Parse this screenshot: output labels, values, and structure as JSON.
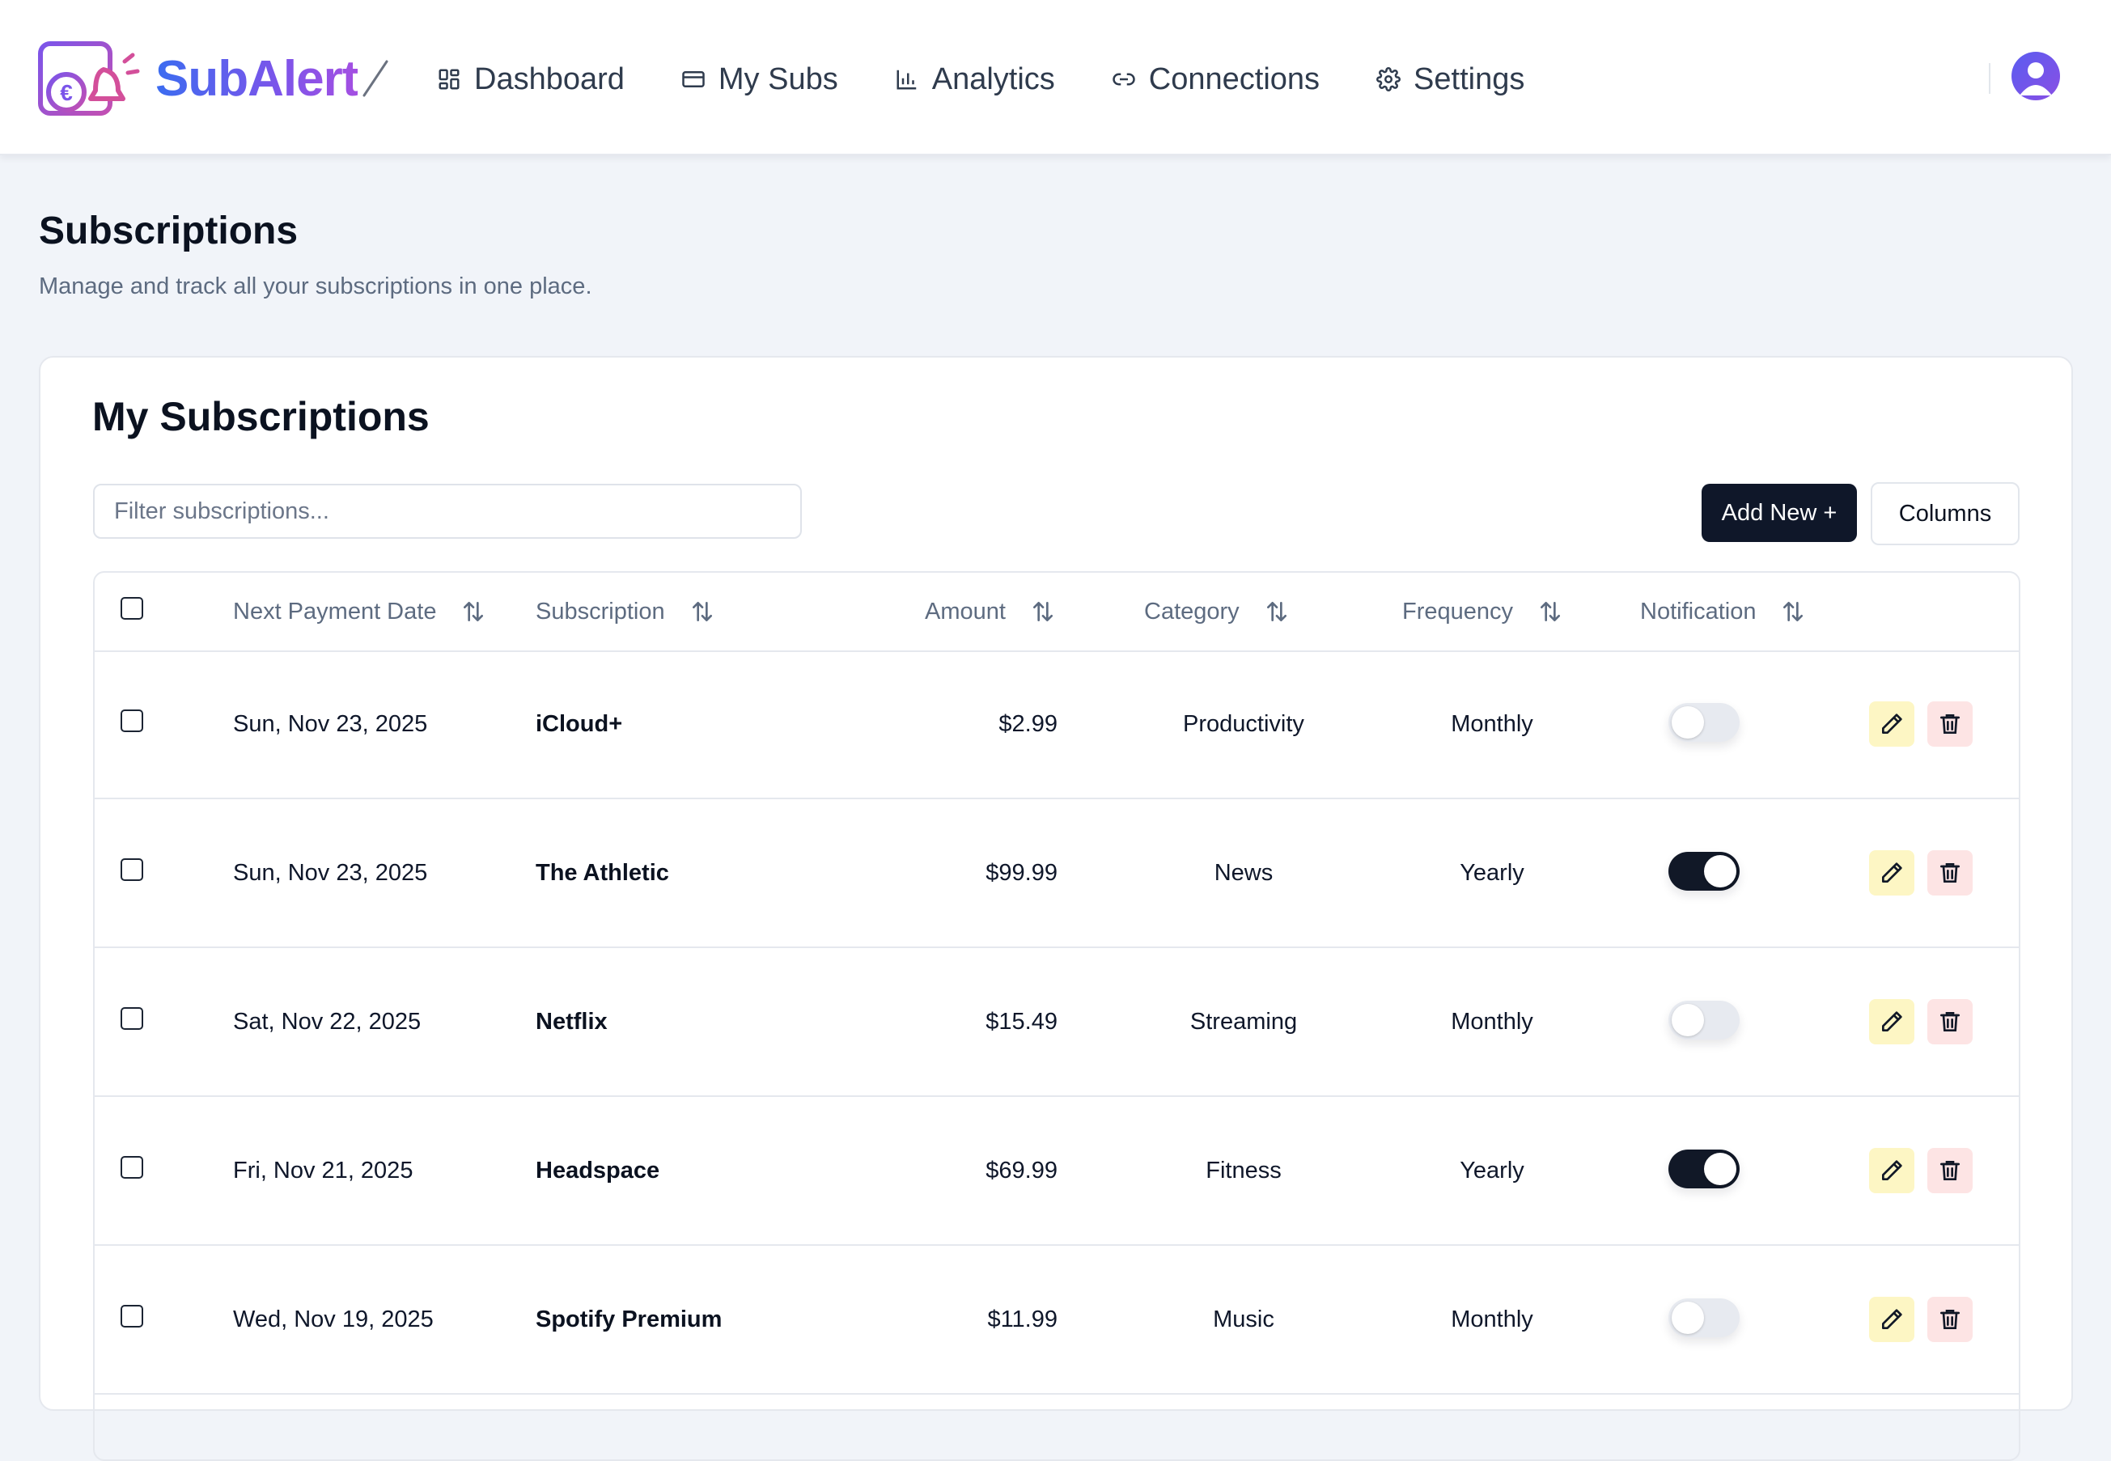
{
  "app": {
    "brand": "SubAlert"
  },
  "nav": [
    {
      "label": "Dashboard",
      "icon": "dashboard-icon"
    },
    {
      "label": "My Subs",
      "icon": "card-icon"
    },
    {
      "label": "Analytics",
      "icon": "bar-chart-icon"
    },
    {
      "label": "Connections",
      "icon": "link-icon"
    },
    {
      "label": "Settings",
      "icon": "gear-icon"
    }
  ],
  "page": {
    "title": "Subscriptions",
    "subtitle": "Manage and track all your subscriptions in one place."
  },
  "card": {
    "title": "My Subscriptions",
    "filter_placeholder": "Filter subscriptions...",
    "add_label": "Add New +",
    "columns_label": "Columns"
  },
  "table": {
    "headers": {
      "date": "Next Payment Date",
      "subscription": "Subscription",
      "amount": "Amount",
      "category": "Category",
      "frequency": "Frequency",
      "notification": "Notification"
    },
    "rows": [
      {
        "date": "Sun, Nov 23, 2025",
        "name": "iCloud+",
        "amount": "$2.99",
        "category": "Productivity",
        "frequency": "Monthly",
        "notification": false
      },
      {
        "date": "Sun, Nov 23, 2025",
        "name": "The Athletic",
        "amount": "$99.99",
        "category": "News",
        "frequency": "Yearly",
        "notification": true
      },
      {
        "date": "Sat, Nov 22, 2025",
        "name": "Netflix",
        "amount": "$15.49",
        "category": "Streaming",
        "frequency": "Monthly",
        "notification": false
      },
      {
        "date": "Fri, Nov 21, 2025",
        "name": "Headspace",
        "amount": "$69.99",
        "category": "Fitness",
        "frequency": "Yearly",
        "notification": true
      },
      {
        "date": "Wed, Nov 19, 2025",
        "name": "Spotify Premium",
        "amount": "$11.99",
        "category": "Music",
        "frequency": "Monthly",
        "notification": false
      }
    ]
  },
  "colors": {
    "primary": "#0f1729",
    "brand_start": "#3b6cf0",
    "brand_end": "#a44fe2",
    "edit_bg": "#fdf6c4",
    "delete_bg": "#fde4e4"
  }
}
